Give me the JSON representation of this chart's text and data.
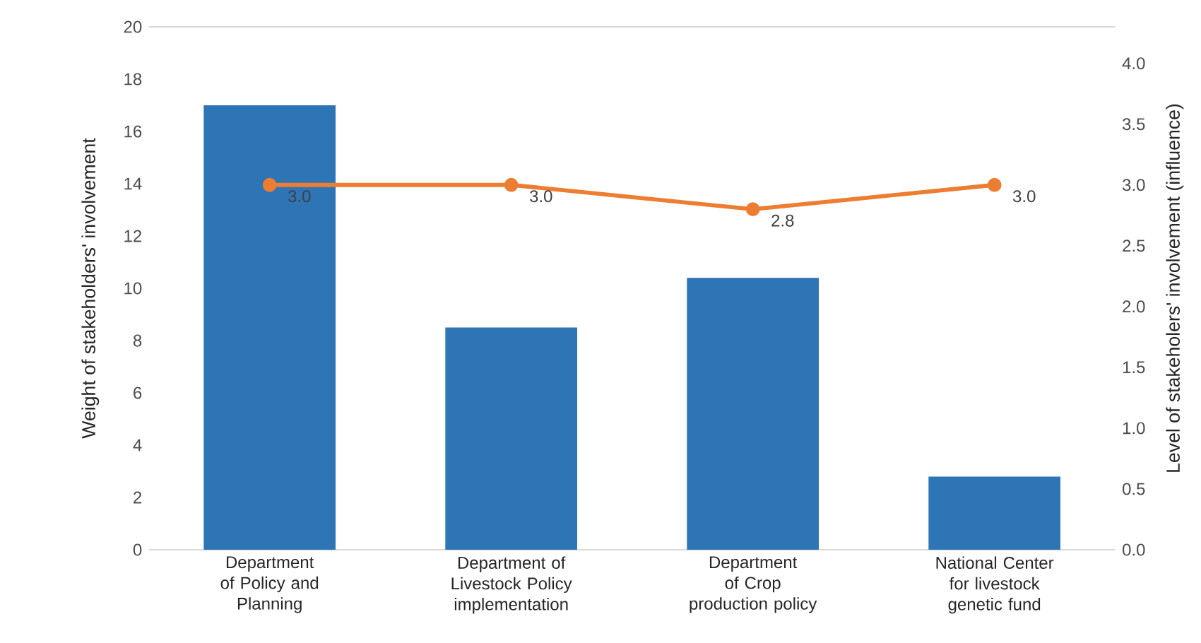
{
  "chart_data": {
    "type": "bar",
    "categories": [
      "Department of Policy and Planning",
      "Department of Livestock Policy implementation",
      "Department of Crop production policy",
      "National Center for livestock genetic fund"
    ],
    "series": [
      {
        "color": "#2e75b6",
        "values": [
          17.0,
          8.5,
          10.4,
          2.8
        ]
      },
      {
        "type": "line",
        "axis": "y2",
        "color": "#ed7d31",
        "marker": "circle",
        "values": [
          3.0,
          3.0,
          2.8,
          3.0
        ],
        "value_labels": [
          "3.0",
          "3.0",
          "2.8",
          "3.0"
        ]
      }
    ],
    "ylabel": "Weight of stakeholders' involvement",
    "y2label": "Level of stakeholers' involvement (influence)",
    "ylim": [
      0,
      20
    ],
    "yticks": [
      0,
      2,
      4,
      6,
      8,
      10,
      12,
      14,
      16,
      18,
      20
    ],
    "y2lim": [
      0,
      4.3
    ],
    "y2ticks": [
      {
        "value": 0,
        "label": "0.0"
      },
      {
        "value": 0.5,
        "label": "0.5"
      },
      {
        "value": 1,
        "label": "1.0"
      },
      {
        "value": 1.5,
        "label": "1.5"
      },
      {
        "value": 2,
        "label": "2.0"
      },
      {
        "value": 2.5,
        "label": "2.5"
      },
      {
        "value": 3,
        "label": "3.0"
      },
      {
        "value": 3.5,
        "label": "3.5"
      },
      {
        "value": 4,
        "label": "4.0"
      }
    ]
  }
}
